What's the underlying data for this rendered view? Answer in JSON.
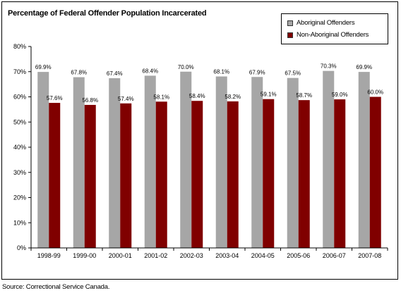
{
  "colors": {
    "aboriginal": "#a6a6a6",
    "non_aboriginal": "#800000",
    "axis": "#000000"
  },
  "source": "Source:  Correctional Service Canada.",
  "chart_data": {
    "type": "bar",
    "title": "Percentage of Federal Offender Population Incarcerated",
    "xlabel": "",
    "ylabel": "",
    "ylim": [
      0,
      80
    ],
    "yticks": [
      "0%",
      "10%",
      "20%",
      "30%",
      "40%",
      "50%",
      "60%",
      "70%",
      "80%"
    ],
    "grid": false,
    "legend_position": "top-right",
    "categories": [
      "1998-99",
      "1999-00",
      "2000-01",
      "2001-02",
      "2002-03",
      "2003-04",
      "2004-05",
      "2005-06",
      "2006-07",
      "2007-08"
    ],
    "series": [
      {
        "name": "Aboriginal Offenders",
        "values": [
          69.9,
          67.8,
          67.4,
          68.4,
          70.0,
          68.1,
          67.9,
          67.5,
          70.3,
          69.9
        ],
        "labels": [
          "69.9%",
          "67.8%",
          "67.4%",
          "68.4%",
          "70.0%",
          "68.1%",
          "67.9%",
          "67.5%",
          "70.3%",
          "69.9%"
        ]
      },
      {
        "name": "Non-Aboriginal Offenders",
        "values": [
          57.6,
          56.8,
          57.4,
          58.1,
          58.4,
          58.2,
          59.1,
          58.7,
          59.0,
          60.0
        ],
        "labels": [
          "57.6%",
          "56.8%",
          "57.4%",
          "58.1%",
          "58.4%",
          "58.2%",
          "59.1%",
          "58.7%",
          "59.0%",
          "60.0%"
        ]
      }
    ]
  }
}
